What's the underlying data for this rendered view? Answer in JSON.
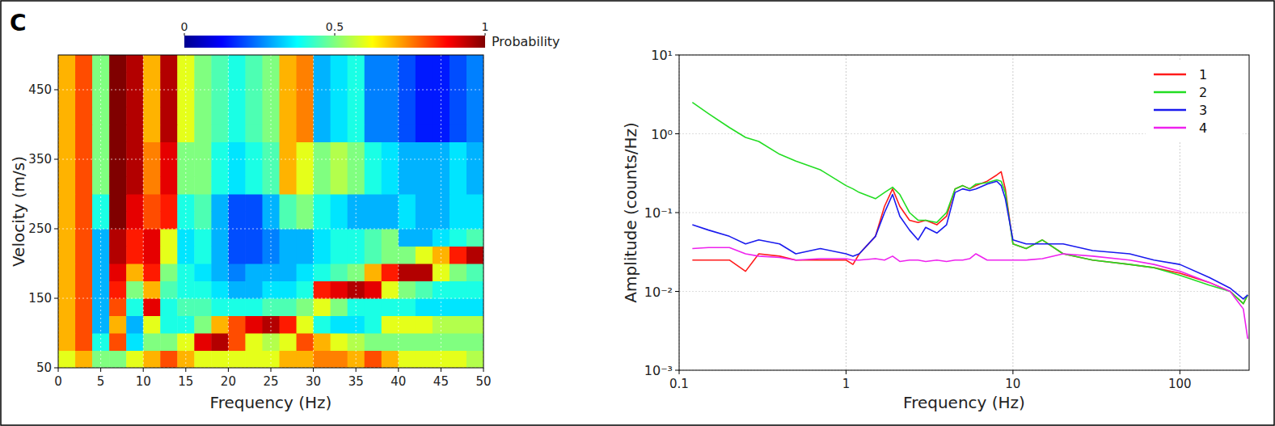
{
  "chart_data": [
    {
      "type": "heatmap",
      "panel_label": "C",
      "x_label": "Frequency (Hz)",
      "y_label": "Velocity (m/s)",
      "xlim": [
        0,
        50
      ],
      "ylim": [
        50,
        500
      ],
      "xticks": [
        0,
        5,
        10,
        15,
        20,
        25,
        30,
        35,
        40,
        45,
        50
      ],
      "yticks": [
        50,
        150,
        250,
        350,
        450
      ],
      "grid": true,
      "x_edges": [
        0,
        2,
        4,
        6,
        8,
        10,
        12,
        14,
        16,
        18,
        20,
        22,
        24,
        26,
        28,
        30,
        32,
        34,
        36,
        38,
        40,
        42,
        44,
        46,
        48,
        50
      ],
      "y_edges": [
        50,
        75,
        100,
        125,
        150,
        175,
        200,
        225,
        250,
        275,
        300,
        325,
        350,
        375,
        400,
        425,
        450,
        475,
        500
      ],
      "cells": [
        [
          0.6,
          0.7,
          0.5,
          0.5,
          0.6,
          0.7,
          0.8,
          0.7,
          0.6,
          0.6,
          0.6,
          0.6,
          0.6,
          0.7,
          0.7,
          0.75,
          0.75,
          0.7,
          0.8,
          0.7,
          0.6,
          0.6,
          0.6,
          0.6,
          0.55
        ],
        [
          0.7,
          0.8,
          0.4,
          0.8,
          0.35,
          0.5,
          0.5,
          0.6,
          0.9,
          0.95,
          0.8,
          0.6,
          0.55,
          0.6,
          0.8,
          0.7,
          0.6,
          0.55,
          0.5,
          0.5,
          0.5,
          0.5,
          0.5,
          0.5,
          0.5
        ],
        [
          0.7,
          0.8,
          0.3,
          0.7,
          0.3,
          0.6,
          0.4,
          0.4,
          0.5,
          0.7,
          0.8,
          0.9,
          0.95,
          0.85,
          0.6,
          0.4,
          0.35,
          0.35,
          0.4,
          0.6,
          0.6,
          0.6,
          0.55,
          0.55,
          0.55
        ],
        [
          0.7,
          0.8,
          0.3,
          0.8,
          0.4,
          0.9,
          0.4,
          0.45,
          0.45,
          0.4,
          0.4,
          0.4,
          0.45,
          0.45,
          0.5,
          0.6,
          0.5,
          0.4,
          0.4,
          0.4,
          0.4,
          0.35,
          0.35,
          0.35,
          0.35
        ],
        [
          0.7,
          0.8,
          0.3,
          0.85,
          0.5,
          0.7,
          0.45,
          0.4,
          0.4,
          0.35,
          0.3,
          0.3,
          0.35,
          0.35,
          0.4,
          0.85,
          0.9,
          0.95,
          0.9,
          0.6,
          0.5,
          0.45,
          0.4,
          0.4,
          0.4
        ],
        [
          0.7,
          0.8,
          0.3,
          0.9,
          0.7,
          0.85,
          0.5,
          0.4,
          0.35,
          0.3,
          0.25,
          0.3,
          0.3,
          0.3,
          0.35,
          0.4,
          0.45,
          0.5,
          0.7,
          0.85,
          0.95,
          0.95,
          0.6,
          0.5,
          0.45
        ],
        [
          0.7,
          0.8,
          0.3,
          0.95,
          0.85,
          0.9,
          0.6,
          0.35,
          0.4,
          0.3,
          0.2,
          0.2,
          0.25,
          0.3,
          0.3,
          0.35,
          0.4,
          0.4,
          0.45,
          0.5,
          0.5,
          0.6,
          0.7,
          0.85,
          0.95
        ],
        [
          0.7,
          0.8,
          0.3,
          0.95,
          0.85,
          0.9,
          0.6,
          0.35,
          0.4,
          0.3,
          0.2,
          0.2,
          0.25,
          0.3,
          0.3,
          0.35,
          0.4,
          0.4,
          0.45,
          0.5,
          0.3,
          0.3,
          0.35,
          0.4,
          0.45
        ],
        [
          0.7,
          0.8,
          0.4,
          1,
          0.9,
          0.8,
          0.85,
          0.4,
          0.45,
          0.3,
          0.2,
          0.2,
          0.3,
          0.45,
          0.5,
          0.4,
          0.35,
          0.3,
          0.3,
          0.3,
          0.35,
          0.3,
          0.3,
          0.35,
          0.35
        ],
        [
          0.7,
          0.8,
          0.4,
          1,
          0.9,
          0.8,
          0.85,
          0.4,
          0.45,
          0.3,
          0.2,
          0.2,
          0.3,
          0.45,
          0.5,
          0.4,
          0.35,
          0.3,
          0.3,
          0.3,
          0.35,
          0.3,
          0.3,
          0.35,
          0.35
        ],
        [
          0.7,
          0.8,
          0.5,
          1,
          0.95,
          0.75,
          0.9,
          0.5,
          0.5,
          0.4,
          0.35,
          0.4,
          0.45,
          0.7,
          0.6,
          0.5,
          0.55,
          0.5,
          0.4,
          0.35,
          0.3,
          0.3,
          0.3,
          0.35,
          0.3
        ],
        [
          0.7,
          0.8,
          0.5,
          1,
          0.95,
          0.75,
          0.9,
          0.5,
          0.5,
          0.4,
          0.35,
          0.4,
          0.45,
          0.7,
          0.6,
          0.5,
          0.55,
          0.5,
          0.4,
          0.35,
          0.3,
          0.3,
          0.3,
          0.35,
          0.3
        ],
        [
          0.7,
          0.8,
          0.5,
          1,
          0.95,
          0.75,
          0.9,
          0.5,
          0.5,
          0.4,
          0.35,
          0.4,
          0.45,
          0.7,
          0.6,
          0.5,
          0.55,
          0.5,
          0.4,
          0.35,
          0.3,
          0.3,
          0.3,
          0.35,
          0.3
        ],
        [
          0.7,
          0.8,
          0.5,
          1,
          0.95,
          0.7,
          0.95,
          0.6,
          0.5,
          0.45,
          0.4,
          0.45,
          0.5,
          0.7,
          0.75,
          0.3,
          0.35,
          0.4,
          0.25,
          0.25,
          0.2,
          0.15,
          0.15,
          0.2,
          0.25
        ],
        [
          0.7,
          0.8,
          0.5,
          1,
          0.95,
          0.7,
          0.95,
          0.6,
          0.5,
          0.45,
          0.4,
          0.45,
          0.5,
          0.7,
          0.75,
          0.3,
          0.35,
          0.4,
          0.25,
          0.25,
          0.2,
          0.15,
          0.15,
          0.2,
          0.25
        ],
        [
          0.7,
          0.8,
          0.5,
          1,
          0.95,
          0.7,
          0.95,
          0.6,
          0.5,
          0.45,
          0.4,
          0.45,
          0.5,
          0.7,
          0.75,
          0.3,
          0.35,
          0.4,
          0.25,
          0.25,
          0.2,
          0.15,
          0.15,
          0.2,
          0.25
        ],
        [
          0.7,
          0.8,
          0.5,
          1,
          0.95,
          0.7,
          0.95,
          0.6,
          0.5,
          0.45,
          0.4,
          0.45,
          0.5,
          0.7,
          0.75,
          0.3,
          0.35,
          0.4,
          0.25,
          0.25,
          0.2,
          0.15,
          0.15,
          0.2,
          0.25
        ],
        [
          0.7,
          0.8,
          0.5,
          1,
          0.95,
          0.7,
          0.95,
          0.6,
          0.5,
          0.45,
          0.4,
          0.45,
          0.5,
          0.7,
          0.75,
          0.3,
          0.35,
          0.4,
          0.25,
          0.25,
          0.2,
          0.15,
          0.15,
          0.2,
          0.25
        ]
      ],
      "colorbar": {
        "label": "Probability",
        "range": [
          0,
          1
        ],
        "ticks": [
          0,
          0.5,
          1
        ]
      }
    },
    {
      "type": "line",
      "log": true,
      "x_label": "Frequency (Hz)",
      "y_label": "Amplitude (counts/Hz)",
      "xlim": [
        0.1,
        260
      ],
      "ylim": [
        0.001,
        10
      ],
      "xticks": [
        0.1,
        1,
        10,
        100
      ],
      "yticks": [
        {
          "value": 10,
          "label": "10¹"
        },
        {
          "value": 1,
          "label": "10⁰"
        },
        {
          "value": 0.1,
          "label": "10⁻¹"
        },
        {
          "value": 0.01,
          "label": "10⁻²"
        },
        {
          "value": 0.001,
          "label": "10⁻³"
        }
      ],
      "grid": true,
      "legend": "top-right",
      "x": [
        0.12,
        0.15,
        0.2,
        0.25,
        0.3,
        0.4,
        0.5,
        0.7,
        1,
        1.1,
        1.2,
        1.5,
        1.7,
        1.9,
        2.1,
        2.4,
        2.7,
        3,
        3.5,
        4,
        4.5,
        5,
        5.5,
        6,
        7,
        8,
        8.5,
        9,
        10,
        12,
        15,
        20,
        30,
        50,
        70,
        100,
        150,
        200,
        240,
        255
      ],
      "series": [
        {
          "name": "1",
          "color": "#ff1a1a",
          "values": [
            0.025,
            0.025,
            0.025,
            0.018,
            0.03,
            0.028,
            0.025,
            0.025,
            0.025,
            0.022,
            0.03,
            0.05,
            0.12,
            0.2,
            0.12,
            0.08,
            0.075,
            0.08,
            0.07,
            0.09,
            0.2,
            0.22,
            0.2,
            0.22,
            0.25,
            0.3,
            0.33,
            0.2,
            0.04,
            0.035,
            0.045,
            0.03,
            0.025,
            0.022,
            0.02,
            0.017,
            0.013,
            0.01,
            0.007,
            0.009
          ]
        },
        {
          "name": "2",
          "color": "#22dd22",
          "values": [
            2.5,
            1.8,
            1.2,
            0.9,
            0.8,
            0.55,
            0.45,
            0.35,
            0.22,
            0.2,
            0.18,
            0.15,
            0.18,
            0.21,
            0.17,
            0.1,
            0.08,
            0.08,
            0.075,
            0.1,
            0.2,
            0.22,
            0.2,
            0.23,
            0.24,
            0.26,
            0.25,
            0.18,
            0.04,
            0.035,
            0.045,
            0.03,
            0.025,
            0.022,
            0.02,
            0.016,
            0.012,
            0.01,
            0.007,
            0.009
          ]
        },
        {
          "name": "3",
          "color": "#1a1aee",
          "values": [
            0.07,
            0.06,
            0.05,
            0.04,
            0.045,
            0.04,
            0.03,
            0.035,
            0.03,
            0.028,
            0.03,
            0.05,
            0.1,
            0.17,
            0.09,
            0.06,
            0.045,
            0.065,
            0.055,
            0.07,
            0.18,
            0.2,
            0.19,
            0.2,
            0.23,
            0.25,
            0.22,
            0.15,
            0.045,
            0.04,
            0.04,
            0.04,
            0.033,
            0.03,
            0.025,
            0.022,
            0.015,
            0.011,
            0.008,
            0.009
          ]
        },
        {
          "name": "4",
          "color": "#ee22ee",
          "values": [
            0.035,
            0.036,
            0.036,
            0.03,
            0.028,
            0.027,
            0.025,
            0.026,
            0.026,
            0.025,
            0.025,
            0.026,
            0.025,
            0.028,
            0.024,
            0.025,
            0.025,
            0.024,
            0.025,
            0.024,
            0.025,
            0.025,
            0.026,
            0.03,
            0.025,
            0.025,
            0.025,
            0.025,
            0.025,
            0.025,
            0.026,
            0.03,
            0.028,
            0.025,
            0.022,
            0.018,
            0.013,
            0.01,
            0.006,
            0.0025
          ]
        }
      ]
    }
  ]
}
